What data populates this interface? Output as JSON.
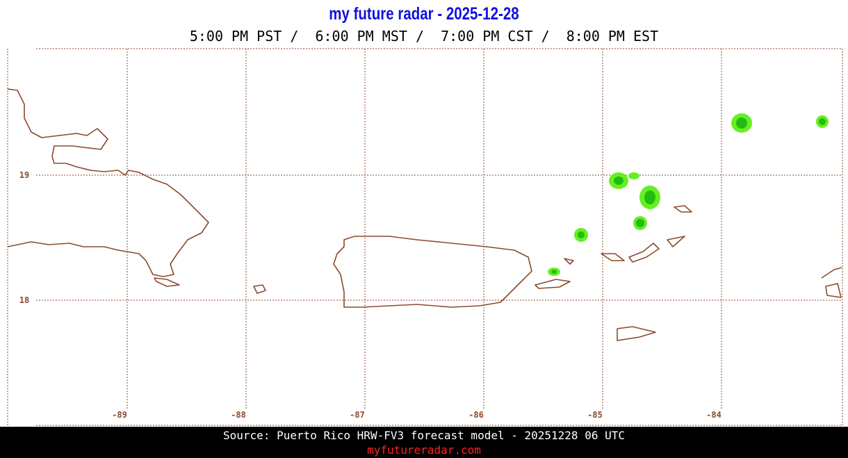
{
  "header": {
    "title": "my future radar - 2025-12-28",
    "times": "5:00 PM PST /  6:00 PM MST /  7:00 PM CST /  8:00 PM EST"
  },
  "map": {
    "lat_labels": [
      "19",
      "18"
    ],
    "lon_labels": [
      "-89",
      "-88",
      "-87",
      "-86",
      "-85",
      "-84"
    ]
  },
  "footer": {
    "source": "Source: Puerto Rico HRW-FV3 forecast model - 20251228 06 UTC",
    "site": "myfutureradar.com"
  }
}
